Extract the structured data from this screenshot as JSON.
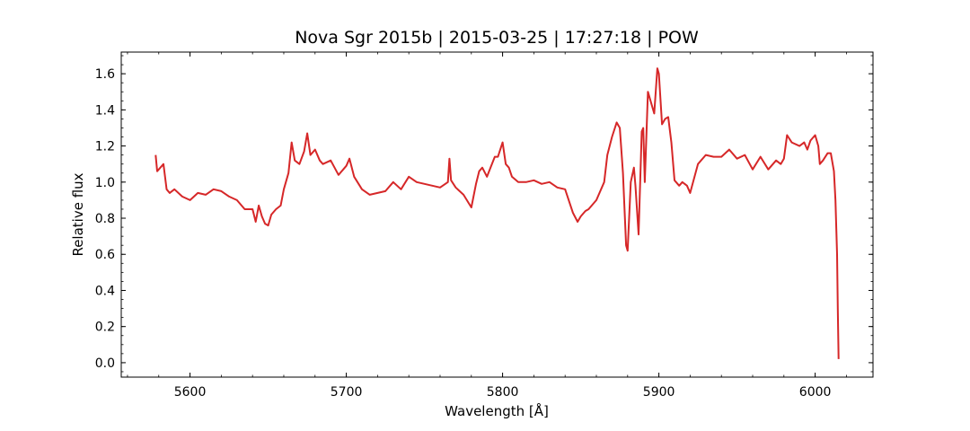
{
  "chart_data": {
    "type": "line",
    "title": "Nova Sgr 2015b | 2015-03-25 | 17:27:18 | POW",
    "xlabel": "Wavelength [Å]",
    "ylabel": "Relative flux",
    "xlim": [
      5556,
      6037
    ],
    "ylim": [
      -0.08,
      1.72
    ],
    "x_ticks": [
      5600,
      5700,
      5800,
      5900,
      6000
    ],
    "y_ticks": [
      0.0,
      0.2,
      0.4,
      0.6,
      0.8,
      1.0,
      1.2,
      1.4,
      1.6
    ],
    "x_minor_step": 20,
    "y_minor_step": 0.05,
    "grid": false,
    "line_color": "#d62728",
    "series": [
      {
        "name": "",
        "x": [
          5578,
          5579,
          5580,
          5583,
          5585,
          5587,
          5590,
          5595,
          5600,
          5605,
          5610,
          5615,
          5620,
          5625,
          5630,
          5635,
          5640,
          5642,
          5644,
          5646,
          5648,
          5650,
          5652,
          5655,
          5658,
          5660,
          5663,
          5665,
          5667,
          5670,
          5673,
          5675,
          5677,
          5680,
          5683,
          5685,
          5690,
          5695,
          5700,
          5702,
          5705,
          5710,
          5715,
          5720,
          5725,
          5730,
          5735,
          5740,
          5745,
          5750,
          5755,
          5760,
          5765,
          5766,
          5767,
          5770,
          5775,
          5780,
          5783,
          5785,
          5787,
          5790,
          5795,
          5797,
          5800,
          5802,
          5804,
          5806,
          5810,
          5815,
          5820,
          5825,
          5830,
          5835,
          5840,
          5845,
          5848,
          5850,
          5853,
          5855,
          5860,
          5865,
          5867,
          5870,
          5873,
          5875,
          5877,
          5879,
          5880,
          5882,
          5884,
          5885,
          5887,
          5889,
          5890,
          5891,
          5893,
          5895,
          5897,
          5899,
          5900,
          5902,
          5904,
          5906,
          5908,
          5910,
          5913,
          5915,
          5918,
          5920,
          5925,
          5930,
          5935,
          5940,
          5945,
          5950,
          5955,
          5960,
          5965,
          5970,
          5975,
          5978,
          5980,
          5982,
          5985,
          5990,
          5993,
          5995,
          5997,
          6000,
          6002,
          6003,
          6005,
          6008,
          6010,
          6012,
          6013,
          6014,
          6014.5,
          6015
        ],
        "values": [
          1.15,
          1.06,
          1.07,
          1.1,
          0.96,
          0.94,
          0.96,
          0.92,
          0.9,
          0.94,
          0.93,
          0.96,
          0.95,
          0.92,
          0.9,
          0.85,
          0.85,
          0.78,
          0.87,
          0.81,
          0.77,
          0.76,
          0.82,
          0.85,
          0.87,
          0.96,
          1.05,
          1.22,
          1.12,
          1.1,
          1.17,
          1.27,
          1.15,
          1.18,
          1.12,
          1.1,
          1.12,
          1.04,
          1.09,
          1.13,
          1.03,
          0.96,
          0.93,
          0.94,
          0.95,
          1.0,
          0.96,
          1.03,
          1.0,
          0.99,
          0.98,
          0.97,
          1.0,
          1.13,
          1.01,
          0.97,
          0.93,
          0.86,
          0.99,
          1.06,
          1.08,
          1.03,
          1.14,
          1.14,
          1.22,
          1.1,
          1.08,
          1.03,
          1.0,
          1.0,
          1.01,
          0.99,
          1.0,
          0.97,
          0.96,
          0.83,
          0.78,
          0.81,
          0.84,
          0.85,
          0.9,
          1.0,
          1.15,
          1.25,
          1.33,
          1.3,
          1.05,
          0.65,
          0.62,
          1.0,
          1.08,
          0.98,
          0.71,
          1.28,
          1.3,
          1.0,
          1.5,
          1.44,
          1.38,
          1.63,
          1.6,
          1.32,
          1.35,
          1.36,
          1.22,
          1.01,
          0.98,
          1.0,
          0.98,
          0.94,
          1.1,
          1.15,
          1.14,
          1.14,
          1.18,
          1.13,
          1.15,
          1.07,
          1.14,
          1.07,
          1.12,
          1.1,
          1.13,
          1.26,
          1.22,
          1.2,
          1.22,
          1.18,
          1.23,
          1.26,
          1.2,
          1.1,
          1.12,
          1.16,
          1.16,
          1.06,
          0.9,
          0.6,
          0.3,
          0.02
        ]
      }
    ]
  }
}
